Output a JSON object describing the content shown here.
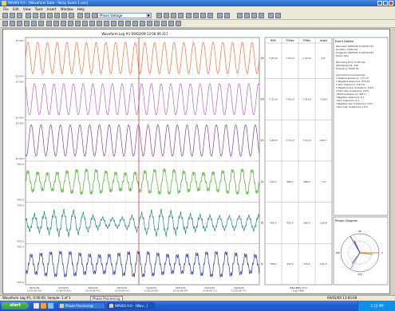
{
  "window": {
    "title": "WAVES 9.0 - [Waveform Data - Relay Event 1.ann]"
  },
  "menu": [
    "File",
    "Edit",
    "View",
    "Tools",
    "Insert",
    "Window",
    "Help"
  ],
  "toolbar": {
    "combo_value": "Phase Voltage"
  },
  "waveform": {
    "title": "Waveform Log #1  09/02/09  13:00:09.311",
    "left_axis_labels": [
      "12.5kV",
      "",
      "-12.5kV",
      "12.5kV",
      "",
      "-12.5kV",
      "12.5kV",
      "",
      "-12.5kV",
      "750 A",
      "",
      "-750 A",
      "750 A",
      "",
      "-750 A",
      "750 A",
      "",
      "-750 A"
    ],
    "channel_labels": [
      "Va",
      "Vb",
      "Vc",
      "Ia",
      "Ib",
      "Ic"
    ],
    "time_labels": [
      "09/02/09\n13:00:09.351",
      "09/02/09\n13:00:09.411",
      "09/02/09\n13:00:09.471",
      "09/02/09\n13:00:09.531",
      "09/02/09\n13:00:09.591",
      "09/02/09\n13:00:09.651",
      "09/02/09\n13:00:09.711",
      "09/02/09\n13:00:09.771"
    ],
    "colors": [
      "#ff6a3a",
      "#c060d0",
      "#8a3aa8",
      "#4caf2e",
      "#1e8a7a",
      "#2a3aa8"
    ]
  },
  "table": {
    "headers": [
      "RMS",
      "FFMax",
      "FFMin",
      "Angle"
    ],
    "rows": [
      [
        "7.24 kV",
        "7.35 kV",
        "7.19 kV",
        "0.0°"
      ],
      [
        "7.31 kV",
        "7.40 kV",
        "7.25 kV",
        "-119.9°"
      ],
      [
        "7.28 kV",
        "7.37 kV",
        "7.21 kV",
        "120.1°"
      ],
      [
        "412 A",
        "468 A",
        "388 A",
        "-7.3°"
      ],
      [
        "405 A",
        "452 A",
        "380 A",
        "-126.9°"
      ],
      [
        "398 A",
        "447 A",
        "375 A",
        "114.4°"
      ]
    ],
    "footer": "Total RMS: 07.3\n1 ph  250A"
  },
  "info": {
    "heading": "Event Details",
    "lines": [
      "Recorded: 09/02/09 13:00:09.311",
      "Duration: 0.500 sec",
      "Triggered: 09/02/09 13:00:09.351",
      "Event: SAG",
      "",
      "Recording Time: 0.457 sec",
      "Samples/Cycle: 128",
      "Frequency: 60.00 Hz",
      "",
      "Symmetrical Components",
      "V Positive Sequence: 7.27 kV",
      "V Negative Sequence: 0.03 kV",
      "V Zero Sequence: 0.02 kV",
      "V Negative Seq. Unbalance: 0.4%",
      "V Zero Seq. Unbalance: 0.3%",
      "I Positive Sequence: 405 A",
      "I Negative Sequence: 8 A",
      "I Zero Sequence: 6 A",
      "I Negative Seq. Unbalance: 2.0%",
      "I Zero Seq. Unbalance: 1.5%"
    ]
  },
  "phasor": {
    "title": "Phasor Diagram",
    "labels": [
      "0",
      "90",
      "180",
      "270"
    ]
  },
  "status": {
    "left": "Waveform Log #1, 0:00:00, Sample: 1 of 1",
    "mid": "Phase Processing",
    "right": "09/02/09 13:00:09"
  },
  "taskbar": {
    "start": "start",
    "tasks": [
      "Phase Processing",
      "WAVES 9.0 - [Wav...]"
    ],
    "clock": "1:23 PM"
  }
}
